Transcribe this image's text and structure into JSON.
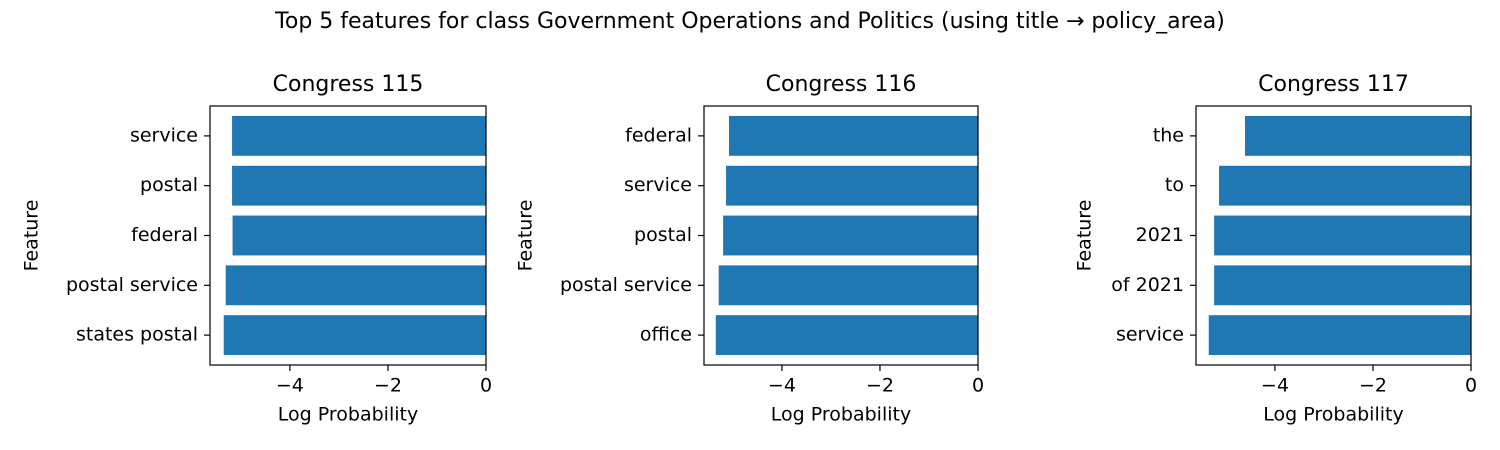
{
  "title": "Top 5 features for class Government Operations and Politics (using title → policy_area)",
  "chart_data": [
    {
      "type": "bar",
      "orientation": "horizontal",
      "title": "Congress 115",
      "xlabel": "Log Probability",
      "ylabel": "Feature",
      "color": "#1f77b4",
      "categories": [
        "service",
        "postal",
        "federal",
        "postal service",
        "states postal"
      ],
      "values": [
        -5.18,
        -5.18,
        -5.17,
        -5.31,
        -5.35
      ],
      "xlim": [
        -5.63,
        0
      ],
      "xticks": [
        {
          "value": -4,
          "label": "−4"
        },
        {
          "value": -2,
          "label": "−2"
        },
        0
      ]
    },
    {
      "type": "bar",
      "orientation": "horizontal",
      "title": "Congress 116",
      "xlabel": "Log Probability",
      "ylabel": "Feature",
      "color": "#1f77b4",
      "categories": [
        "federal",
        "service",
        "postal",
        "postal service",
        "office"
      ],
      "values": [
        -5.08,
        -5.14,
        -5.2,
        -5.29,
        -5.35
      ],
      "xlim": [
        -5.59,
        0
      ],
      "xticks": [
        {
          "value": -4,
          "label": "−4"
        },
        {
          "value": -2,
          "label": "−2"
        },
        0
      ]
    },
    {
      "type": "bar",
      "orientation": "horizontal",
      "title": "Congress 117",
      "xlabel": "Log Probability",
      "ylabel": "Feature",
      "color": "#1f77b4",
      "categories": [
        "the",
        "to",
        "2021",
        "of 2021",
        "service"
      ],
      "values": [
        -4.61,
        -5.14,
        -5.24,
        -5.24,
        -5.35
      ],
      "xlim": [
        -5.61,
        0
      ],
      "xticks": [
        {
          "value": -4,
          "label": "−4"
        },
        {
          "value": -2,
          "label": "−2"
        },
        0
      ]
    }
  ]
}
